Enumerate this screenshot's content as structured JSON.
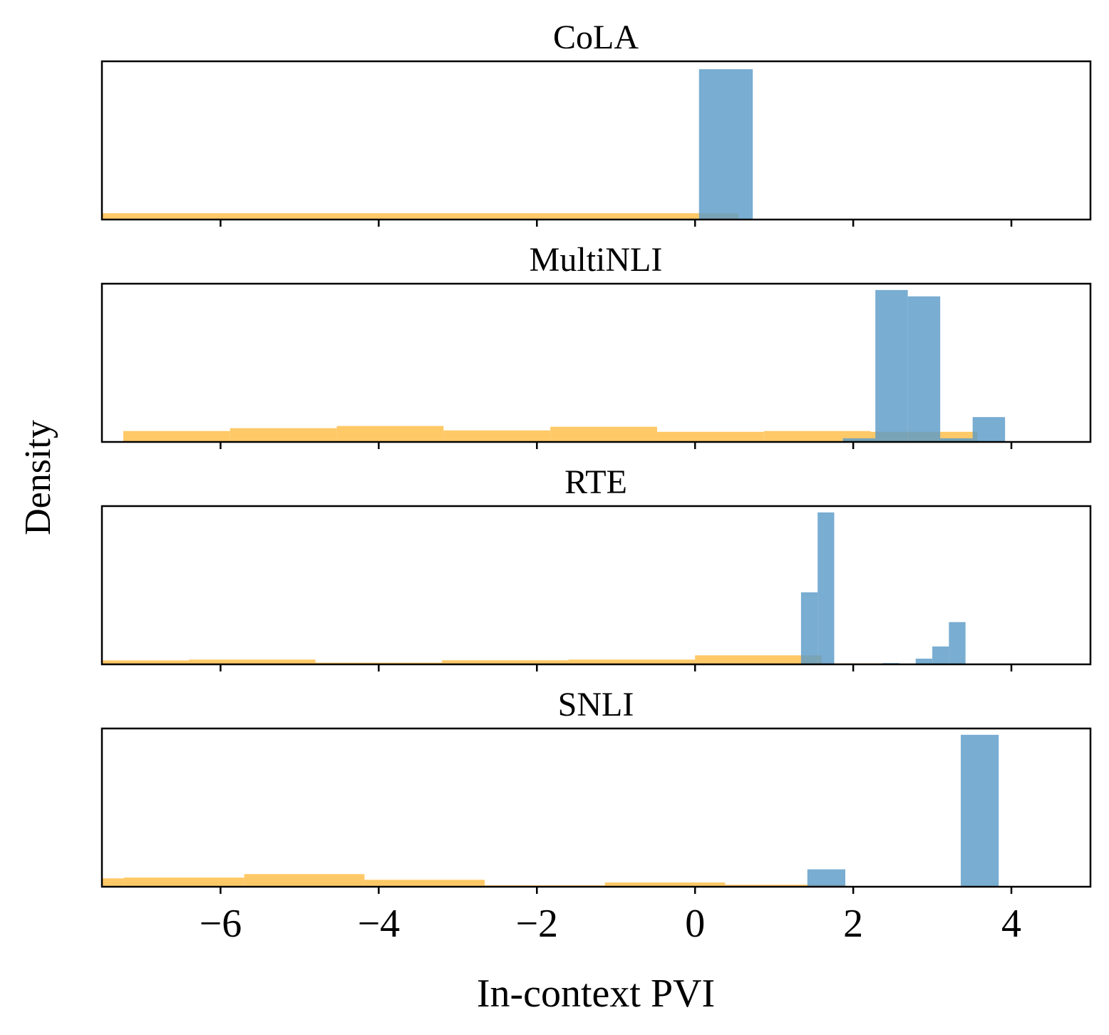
{
  "figure": {
    "ylabel": "Density",
    "xlabel": "In-context PVI",
    "xticks": [
      "−6",
      "−4",
      "−2",
      "0",
      "2",
      "4"
    ]
  },
  "colors": {
    "series_blue": "#5b9bc8",
    "series_orange": "#ffc04d",
    "axis": "#000000"
  },
  "chart_data": [
    {
      "type": "histogram",
      "title": "CoLA",
      "xlim": [
        -7.5,
        5.0
      ],
      "ylim_relative": [
        0,
        1.0
      ],
      "yticks": "hidden",
      "xtick_values": [
        -6,
        -4,
        -2,
        0,
        2,
        4
      ],
      "series": [
        {
          "color": "orange",
          "bins": [
            [
              -7.5,
              0.55,
              0.04
            ]
          ]
        },
        {
          "color": "blue",
          "bins": [
            [
              0.05,
              0.73,
              0.95
            ]
          ]
        }
      ]
    },
    {
      "type": "histogram",
      "title": "MultiNLI",
      "xlim": [
        -7.5,
        5.0
      ],
      "yticks": "hidden",
      "xtick_values": [
        -6,
        -4,
        -2,
        0,
        2,
        4
      ],
      "series": [
        {
          "color": "orange",
          "bins": [
            [
              -7.23,
              -5.88,
              0.069
            ],
            [
              -5.88,
              -4.53,
              0.087
            ],
            [
              -4.53,
              -3.18,
              0.101
            ],
            [
              -3.18,
              -1.83,
              0.073
            ],
            [
              -1.83,
              -0.48,
              0.096
            ],
            [
              -0.48,
              0.87,
              0.064
            ],
            [
              0.87,
              2.22,
              0.069
            ],
            [
              2.22,
              3.57,
              0.064
            ]
          ]
        },
        {
          "color": "blue",
          "bins": [
            [
              1.87,
              2.28,
              0.023
            ],
            [
              2.28,
              2.69,
              0.96
            ],
            [
              2.69,
              3.1,
              0.92
            ],
            [
              3.1,
              3.51,
              0.023
            ],
            [
              3.51,
              3.92,
              0.157
            ]
          ]
        }
      ]
    },
    {
      "type": "histogram",
      "title": "RTE",
      "xlim": [
        -7.5,
        5.0
      ],
      "yticks": "hidden",
      "xtick_values": [
        -6,
        -4,
        -2,
        0,
        2,
        4
      ],
      "series": [
        {
          "color": "orange",
          "bins": [
            [
              -7.5,
              -6.4,
              0.025
            ],
            [
              -6.4,
              -4.8,
              0.03
            ],
            [
              -4.8,
              -3.2,
              0.011
            ],
            [
              -3.2,
              -1.6,
              0.026
            ],
            [
              -1.6,
              0.0,
              0.03
            ],
            [
              0.0,
              1.6,
              0.057
            ],
            [
              1.6,
              2.5,
              0.006
            ]
          ]
        },
        {
          "color": "blue",
          "bins": [
            [
              1.34,
              1.55,
              0.455
            ],
            [
              1.55,
              1.76,
              0.96
            ],
            [
              2.37,
              2.58,
              0.008
            ],
            [
              2.79,
              3.0,
              0.036
            ],
            [
              3.0,
              3.21,
              0.113
            ],
            [
              3.21,
              3.42,
              0.267
            ]
          ]
        }
      ]
    },
    {
      "type": "histogram",
      "title": "SNLI",
      "xlim": [
        -7.5,
        5.0
      ],
      "yticks": "hidden",
      "xtick_values": [
        -6,
        -4,
        -2,
        0,
        2,
        4
      ],
      "series": [
        {
          "color": "orange",
          "bins": [
            [
              -7.5,
              -7.22,
              0.053
            ],
            [
              -7.22,
              -5.7,
              0.058
            ],
            [
              -5.7,
              -4.18,
              0.08
            ],
            [
              -4.18,
              -2.66,
              0.044
            ],
            [
              -2.66,
              -1.14,
              0.009
            ],
            [
              -1.14,
              0.38,
              0.027
            ],
            [
              0.38,
              1.9,
              0.013
            ],
            [
              1.9,
              3.4,
              0.004
            ]
          ]
        },
        {
          "color": "blue",
          "bins": [
            [
              1.42,
              1.9,
              0.11
            ],
            [
              3.36,
              3.84,
              0.96
            ]
          ]
        }
      ]
    }
  ]
}
